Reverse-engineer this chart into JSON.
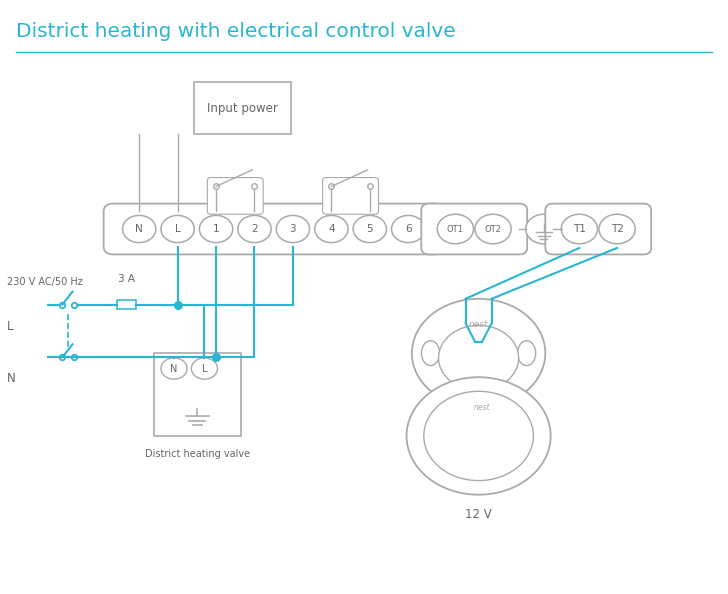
{
  "title": "District heating with electrical control valve",
  "title_color": "#29b6d2",
  "bg_color": "#ffffff",
  "line_color": "#29b6d2",
  "component_color": "#aaaaaa",
  "text_color": "#666666",
  "main_terminals": [
    "N",
    "L",
    "1",
    "2",
    "3",
    "4",
    "5",
    "6"
  ],
  "ot_terminals": [
    "OT1",
    "OT2"
  ],
  "t_terminals": [
    "T1",
    "T2"
  ]
}
